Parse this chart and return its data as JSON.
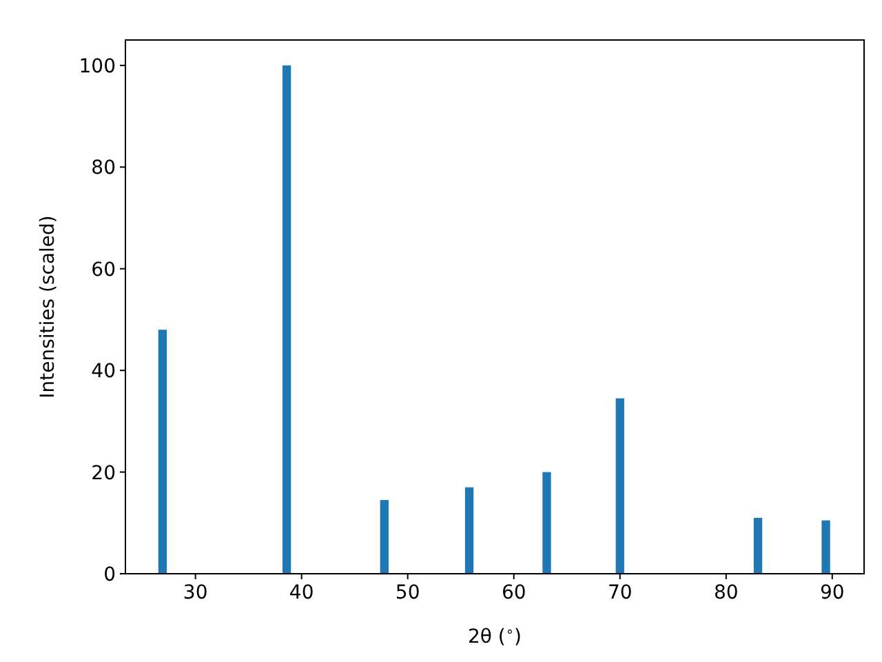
{
  "chart_data": {
    "type": "bar",
    "xlabel": "2θ ($^{∘}$)",
    "ylabel": "Intensities (scaled)",
    "x": [
      26.9,
      38.6,
      47.8,
      55.8,
      63.1,
      70.0,
      83.0,
      89.4
    ],
    "values": [
      48,
      100,
      14.5,
      17,
      20,
      34.5,
      11,
      10.5
    ],
    "color": "#1f77b4",
    "xlim": [
      23.4,
      93.0
    ],
    "xticks": [
      30,
      40,
      50,
      60,
      70,
      80,
      90
    ],
    "ylim": [
      0,
      105
    ],
    "yticks": [
      0,
      20,
      40,
      60,
      80,
      100
    ],
    "grid": false
  }
}
